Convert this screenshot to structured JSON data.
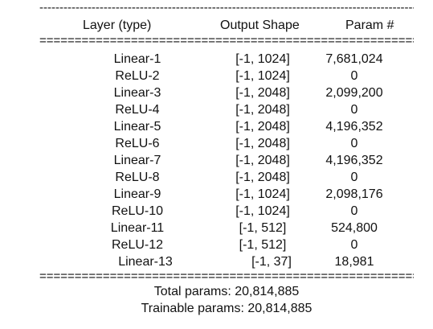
{
  "summary": {
    "rule_dash": "----------------------------------------------------------------------------------------------------",
    "rule_equals": "==================================================================================================",
    "headers": {
      "layer": "Layer (type)",
      "output_shape": "Output Shape",
      "params": "Param #"
    },
    "rows": [
      {
        "layer": "Linear-1",
        "shape": "[-1, 1024]",
        "params": "7,681,024"
      },
      {
        "layer": "ReLU-2",
        "shape": "[-1, 1024]",
        "params": "0"
      },
      {
        "layer": "Linear-3",
        "shape": "[-1, 2048]",
        "params": "2,099,200"
      },
      {
        "layer": "ReLU-4",
        "shape": "[-1, 2048]",
        "params": "0"
      },
      {
        "layer": "Linear-5",
        "shape": "[-1, 2048]",
        "params": "4,196,352"
      },
      {
        "layer": "ReLU-6",
        "shape": "[-1, 2048]",
        "params": "0"
      },
      {
        "layer": "Linear-7",
        "shape": "[-1, 2048]",
        "params": "4,196,352"
      },
      {
        "layer": "ReLU-8",
        "shape": "[-1, 2048]",
        "params": "0"
      },
      {
        "layer": "Linear-9",
        "shape": "[-1, 1024]",
        "params": "2,098,176"
      },
      {
        "layer": "ReLU-10",
        "shape": "[-1, 1024]",
        "params": "0"
      },
      {
        "layer": "Linear-11",
        "shape": "[-1, 512]",
        "params": "524,800"
      },
      {
        "layer": "ReLU-12",
        "shape": "[-1, 512]",
        "params": "0"
      },
      {
        "layer": "Linear-13",
        "shape": "[-1, 37]",
        "params": "18,981"
      }
    ],
    "total_params": "Total params: 20,814,885",
    "trainable_params": "Trainable params: 20,814,885"
  }
}
